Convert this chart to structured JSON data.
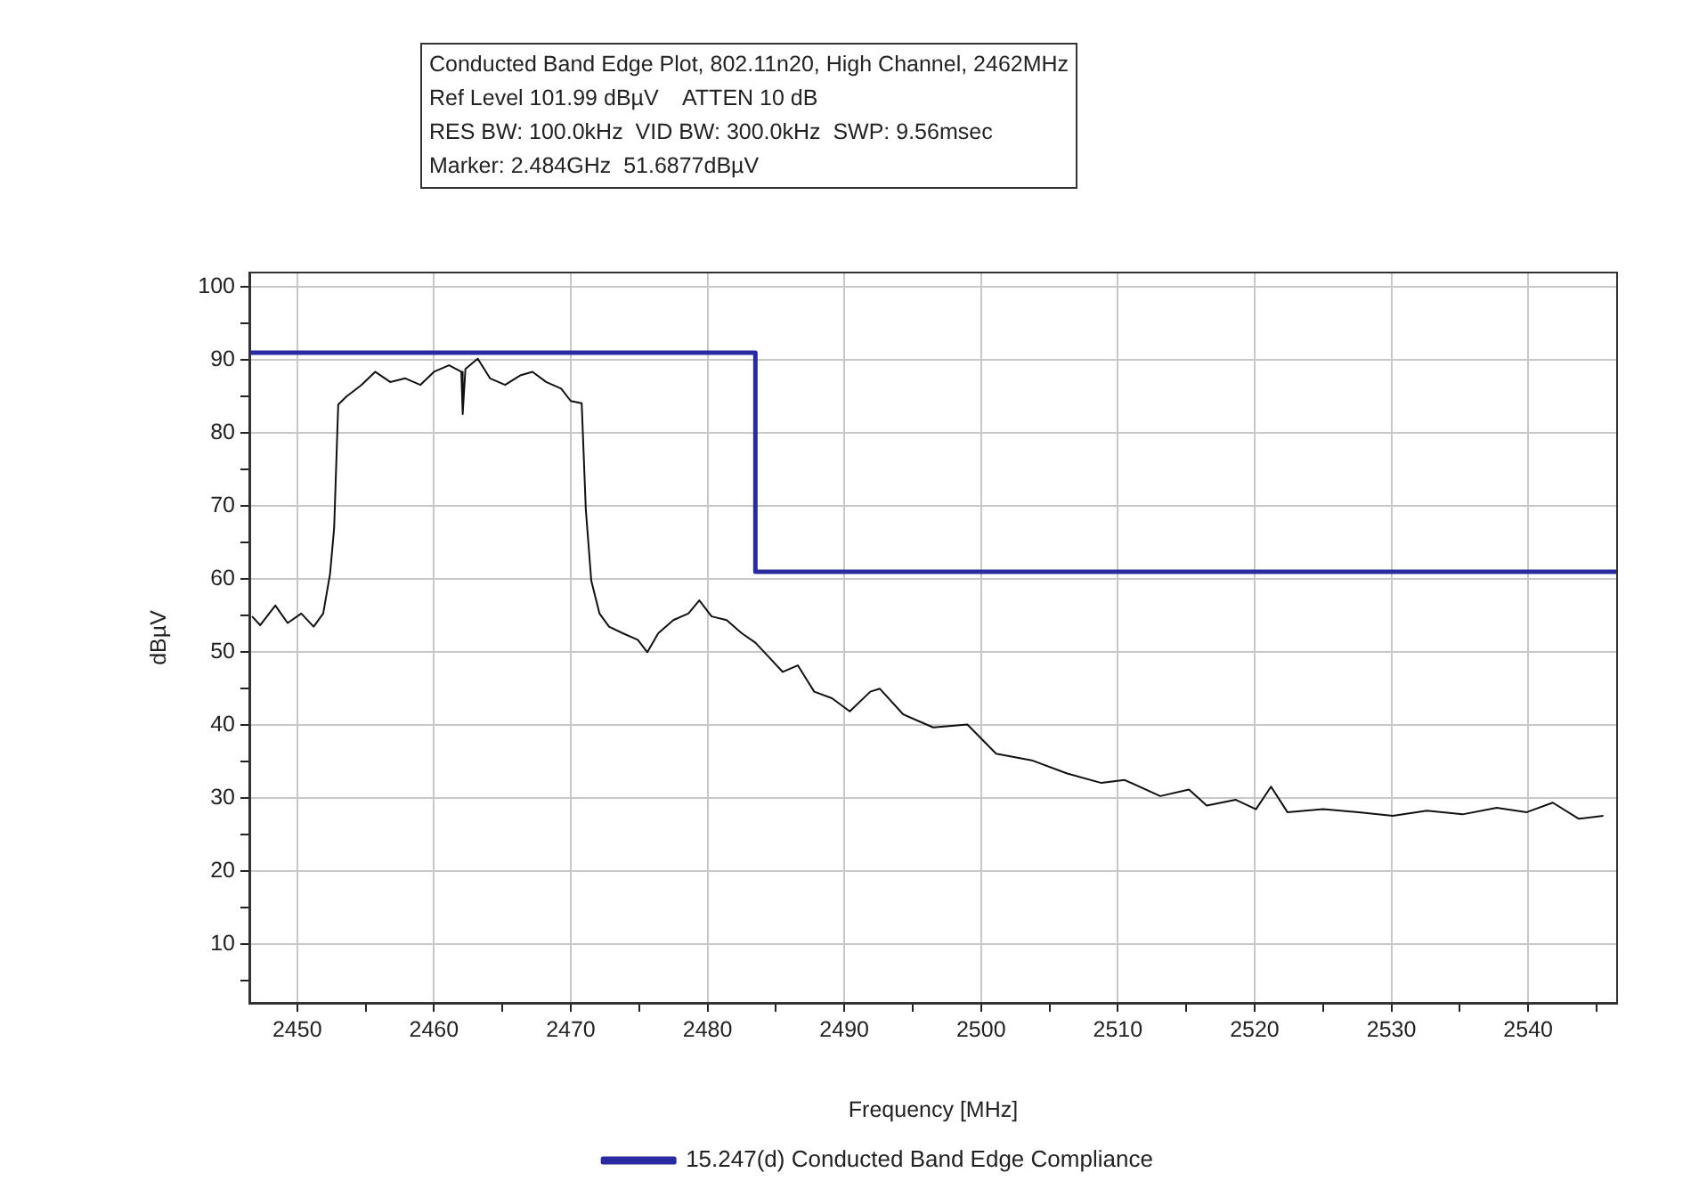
{
  "chart_data": {
    "type": "line",
    "title": "Conducted Band Edge Plot, 802.11n20, High Channel, 2462MHz",
    "annotations": [
      "Ref Level 101.99 dBµV    ATTEN 10 dB",
      "RES BW: 100.0kHz  VID BW: 300.0kHz  SWP: 9.56msec",
      "Marker: 2.484GHz  51.6877dBµV"
    ],
    "xlabel": "Frequency [MHz]",
    "ylabel": "dBµV",
    "xlim": [
      2446.5,
      2546.5
    ],
    "ylim": [
      1.99,
      101.99
    ],
    "xticks": [
      2450,
      {
        "value": 2455,
        "label": null
      },
      2460,
      {
        "value": 2465,
        "label": null
      },
      2470,
      {
        "value": 2475,
        "label": null
      },
      2480,
      {
        "value": 2485,
        "label": null
      },
      2490,
      {
        "value": 2495,
        "label": null
      },
      2500,
      {
        "value": 2505,
        "label": null
      },
      2510,
      {
        "value": 2515,
        "label": null
      },
      2520,
      {
        "value": 2525,
        "label": null
      },
      2530,
      {
        "value": 2535,
        "label": null
      },
      2540,
      {
        "value": 2545,
        "label": null
      }
    ],
    "yticks": [
      {
        "value": 5,
        "label": null
      },
      10,
      {
        "value": 15,
        "label": null
      },
      20,
      {
        "value": 25,
        "label": null
      },
      30,
      {
        "value": 35,
        "label": null
      },
      40,
      {
        "value": 45,
        "label": null
      },
      50,
      {
        "value": 55,
        "label": null
      },
      60,
      {
        "value": 65,
        "label": null
      },
      70,
      {
        "value": 75,
        "label": null
      },
      80,
      {
        "value": 85,
        "label": null
      },
      90,
      {
        "value": 95,
        "label": null
      },
      100
    ],
    "grid": true,
    "legend": "bottom",
    "marker": "none",
    "line_style": "solid",
    "series": [
      {
        "name": "15.247(d) Conducted Band Edge Compliance",
        "color": "#2a2aa0",
        "x": [
          2446.5,
          2483.5,
          2483.5,
          2546.5
        ],
        "values": [
          91,
          91,
          61,
          61
        ]
      },
      {
        "color": "#111111",
        "x": [
          2446.7,
          2447.3,
          2448.4,
          2449.3,
          2450.3,
          2451.2,
          2451.9,
          2452.4,
          2452.7,
          2453.0,
          2453.6,
          2454.7,
          2455.7,
          2456.8,
          2457.9,
          2459.0,
          2460.0,
          2461.1,
          2462.0,
          2462.1,
          2462.3,
          2463.2,
          2464.1,
          2465.2,
          2466.3,
          2467.2,
          2468.2,
          2469.3,
          2470.0,
          2470.8,
          2471.1,
          2471.5,
          2472.1,
          2472.8,
          2473.8,
          2474.9,
          2475.6,
          2476.4,
          2477.5,
          2478.6,
          2479.4,
          2480.3,
          2481.4,
          2482.5,
          2483.5,
          2484.4,
          2485.5,
          2486.6,
          2487.8,
          2489.1,
          2490.4,
          2491.9,
          2492.6,
          2494.3,
          2496.5,
          2499.0,
          2501.1,
          2503.7,
          2506.3,
          2508.8,
          2510.5,
          2513.1,
          2515.2,
          2516.5,
          2518.6,
          2520.1,
          2521.2,
          2522.4,
          2525.0,
          2527.6,
          2530.1,
          2532.6,
          2535.2,
          2537.7,
          2539.9,
          2541.8,
          2543.7,
          2545.5
        ],
        "values": [
          54.9,
          53.7,
          56.4,
          54.0,
          55.3,
          53.5,
          55.3,
          60.7,
          67.0,
          83.9,
          85.0,
          86.6,
          88.4,
          87.0,
          87.5,
          86.6,
          88.4,
          89.3,
          88.4,
          82.6,
          88.8,
          90.2,
          87.5,
          86.6,
          87.9,
          88.4,
          87.0,
          86.1,
          84.4,
          84.1,
          69.6,
          59.8,
          55.3,
          53.5,
          52.6,
          51.7,
          50.0,
          52.6,
          54.4,
          55.3,
          57.1,
          54.9,
          54.4,
          52.6,
          51.3,
          49.5,
          47.3,
          48.2,
          44.6,
          43.7,
          41.9,
          44.6,
          45.0,
          41.5,
          39.7,
          40.1,
          36.1,
          35.2,
          33.4,
          32.1,
          32.5,
          30.3,
          31.2,
          29.0,
          29.8,
          28.5,
          31.6,
          28.1,
          28.5,
          28.1,
          27.6,
          28.3,
          27.8,
          28.7,
          28.1,
          29.4,
          27.2,
          27.6
        ]
      }
    ]
  }
}
